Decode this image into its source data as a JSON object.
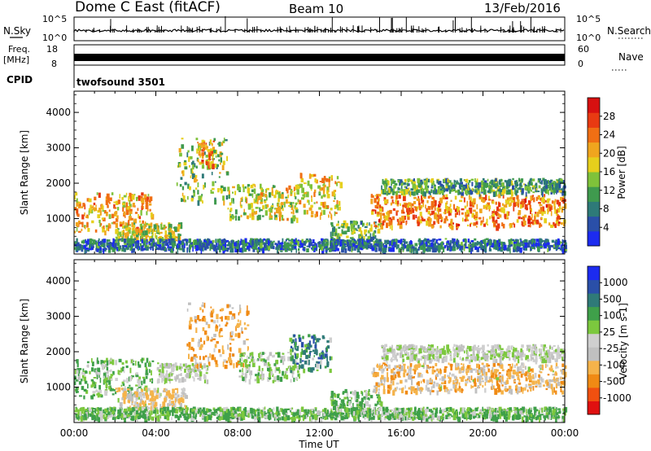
{
  "header": {
    "station": "Dome C East (fitACF)",
    "beam": "Beam 10",
    "date": "13/Feb/2016"
  },
  "summary_panels": {
    "nsky_label": "N.Sky",
    "nsky_ticks": [
      "10^5",
      "10^0"
    ],
    "nsearch_label": "N.Search",
    "nsearch_ticks": [
      "10^5",
      "10^0"
    ],
    "freq_label_1": "Freq.",
    "freq_label_2": "[MHz]",
    "freq_ticks": [
      "18",
      "8"
    ],
    "nave_label": "Nave",
    "nave_ticks": [
      "60",
      "0"
    ],
    "cpid_label": "CPID",
    "cpid_value": "twofsound 3501"
  },
  "colors": {
    "power_scale": [
      "#1c2bf0",
      "#2a4fa8",
      "#2e7a78",
      "#3f9a4e",
      "#7fc23a",
      "#e6cf1c",
      "#f0a51e",
      "#f06f14",
      "#e83a12",
      "#d71010"
    ],
    "velocity_scale": [
      "#e01010",
      "#f05010",
      "#f08a14",
      "#f5b34a",
      "#c0c0c0",
      "#cfcfcf",
      "#7cc83e",
      "#3fa04a",
      "#2f7a78",
      "#2a4fa8",
      "#1c2bf0"
    ]
  },
  "chart_data": [
    {
      "type": "heatmap",
      "panel": "power",
      "ylabel": "Slant Range [km]",
      "yticks": [
        "1000",
        "2000",
        "3000",
        "4000"
      ],
      "ylim": [
        0,
        4600
      ],
      "xlim": [
        0,
        24
      ],
      "colorbar_label": "Power [dB]",
      "colorbar_ticks": [
        "4",
        "8",
        "12",
        "16",
        "20",
        "24",
        "28"
      ],
      "bands": [
        {
          "t_start": 0.0,
          "t_end": 3.8,
          "r_center": 1200,
          "r_half": 550,
          "level": 20
        },
        {
          "t_start": 2.0,
          "t_end": 5.2,
          "r_center": 650,
          "r_half": 250,
          "level": 16
        },
        {
          "t_start": 5.0,
          "t_end": 7.5,
          "r_center": 2400,
          "r_half": 900,
          "level": 14
        },
        {
          "t_start": 6.0,
          "t_end": 6.8,
          "r_center": 2900,
          "r_half": 350,
          "level": 22
        },
        {
          "t_start": 7.5,
          "t_end": 11.0,
          "r_center": 1500,
          "r_half": 500,
          "level": 16
        },
        {
          "t_start": 11.0,
          "t_end": 13.0,
          "r_center": 1700,
          "r_half": 600,
          "level": 18
        },
        {
          "t_start": 12.5,
          "t_end": 15.0,
          "r_center": 600,
          "r_half": 350,
          "level": 12
        },
        {
          "t_start": 14.5,
          "t_end": 24.0,
          "r_center": 1250,
          "r_half": 450,
          "level": 22
        },
        {
          "t_start": 15.0,
          "t_end": 24.0,
          "r_center": 1950,
          "r_half": 200,
          "level": 11
        },
        {
          "t_start": 0.0,
          "t_end": 24.0,
          "r_center": 300,
          "r_half": 150,
          "level": 7
        }
      ]
    },
    {
      "type": "heatmap",
      "panel": "velocity",
      "ylabel": "Slant Range [km]",
      "yticks": [
        "1000",
        "2000",
        "3000",
        "4000"
      ],
      "ylim": [
        0,
        4600
      ],
      "xlim": [
        0,
        24
      ],
      "xlabel": "Time UT",
      "xticks": [
        "00:00",
        "04:00",
        "08:00",
        "12:00",
        "16:00",
        "20:00",
        "00:00"
      ],
      "colorbar_label": "Velocity [m s-1]",
      "colorbar_ticks": [
        "-1000",
        "-500",
        "-100",
        "-25",
        "25",
        "100",
        "500",
        "1000"
      ],
      "bands": [
        {
          "t_start": 0.0,
          "t_end": 3.8,
          "r_center": 1300,
          "r_half": 550,
          "level": 100
        },
        {
          "t_start": 2.0,
          "t_end": 5.5,
          "r_center": 700,
          "r_half": 300,
          "level": -100
        },
        {
          "t_start": 4.0,
          "t_end": 6.5,
          "r_center": 1450,
          "r_half": 250,
          "level": 0
        },
        {
          "t_start": 5.5,
          "t_end": 8.5,
          "r_center": 2500,
          "r_half": 900,
          "level": -200
        },
        {
          "t_start": 8.0,
          "t_end": 11.0,
          "r_center": 1600,
          "r_half": 400,
          "level": 50
        },
        {
          "t_start": 10.5,
          "t_end": 12.5,
          "r_center": 2000,
          "r_half": 500,
          "level": 300
        },
        {
          "t_start": 12.5,
          "t_end": 15.0,
          "r_center": 600,
          "r_half": 350,
          "level": 100
        },
        {
          "t_start": 14.5,
          "t_end": 24.0,
          "r_center": 1300,
          "r_half": 400,
          "level": -150
        },
        {
          "t_start": 15.0,
          "t_end": 24.0,
          "r_center": 2000,
          "r_half": 220,
          "level": 0
        },
        {
          "t_start": 0.0,
          "t_end": 24.0,
          "r_center": 300,
          "r_half": 150,
          "level": 100
        }
      ]
    }
  ]
}
